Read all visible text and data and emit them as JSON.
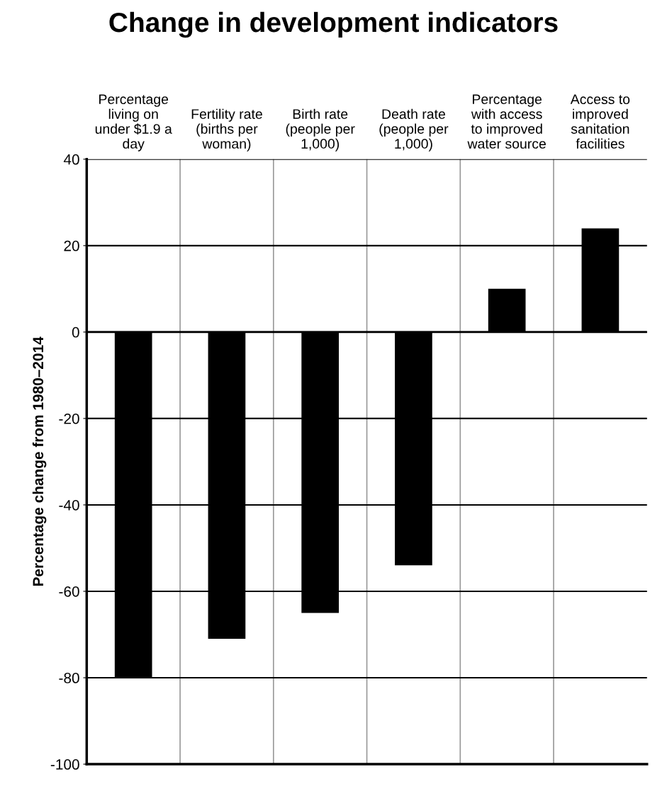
{
  "chart_data": {
    "type": "bar",
    "title": "Change in development indicators",
    "ylabel": "Percentage change from 1980–2014",
    "categories": [
      "Percentage living on under $1.9 a day",
      "Fertility rate (births per woman)",
      "Birth rate (people per 1,000)",
      "Death rate (people per 1,000)",
      "Percentage with access to improved water source",
      "Access to improved sanitation facilities"
    ],
    "values": [
      -80,
      -71,
      -65,
      -54,
      10,
      24
    ],
    "color": "#000000",
    "ylim": [
      -100,
      40
    ],
    "yticks": [
      -100,
      -80,
      -60,
      -40,
      -20,
      0,
      20,
      40
    ],
    "grid": true
  }
}
